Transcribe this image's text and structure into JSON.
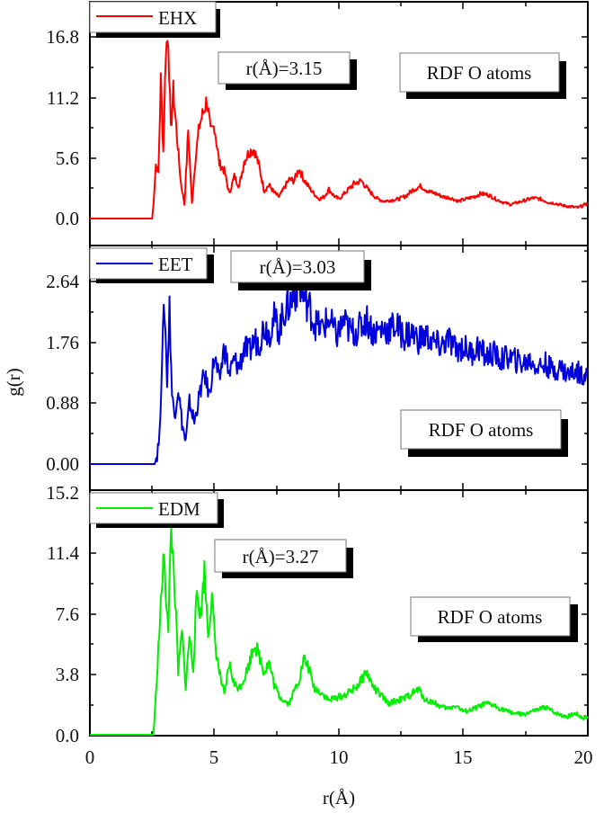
{
  "figure": {
    "xlabel": "r(Å)",
    "ylabel": "g(r)",
    "x_ticks": [
      "0",
      "5",
      "10",
      "15",
      "20"
    ]
  },
  "panels": [
    {
      "legend": "EHX",
      "color": "#ff0000",
      "peak_label": "r(Å)=3.15",
      "annotation": "RDF O atoms",
      "y_ticks": [
        "0.0",
        "5.6",
        "11.2",
        "16.8"
      ]
    },
    {
      "legend": "EET",
      "color": "#0000dd",
      "peak_label": "r(Å)=3.03",
      "annotation": "RDF O atoms",
      "y_ticks": [
        "0.00",
        "0.88",
        "1.76",
        "2.64"
      ]
    },
    {
      "legend": "EDM",
      "color": "#00ee00",
      "peak_label": "r(Å)=3.27",
      "annotation": "RDF O atoms",
      "y_ticks": [
        "0.0",
        "3.8",
        "7.6",
        "11.4",
        "15.2"
      ]
    }
  ],
  "chart_data": [
    {
      "type": "line",
      "title": "",
      "xlabel": "r(Å)",
      "ylabel": "g(r)",
      "xlim": [
        0,
        20
      ],
      "ylim": [
        -2.5,
        19.9
      ],
      "y_ticks": [
        0.0,
        5.6,
        11.2,
        16.8
      ],
      "grid": false,
      "legend_position": "upper left",
      "annotations": [
        "r(Å)=3.15",
        "RDF O atoms"
      ],
      "series": [
        {
          "name": "EHX",
          "color": "#ff0000",
          "x": [
            0,
            2.5,
            2.55,
            2.65,
            2.75,
            2.85,
            2.95,
            3.05,
            3.15,
            3.25,
            3.35,
            3.5,
            3.65,
            3.8,
            3.95,
            4.1,
            4.25,
            4.4,
            4.55,
            4.7,
            4.85,
            5.0,
            5.2,
            5.4,
            5.6,
            5.8,
            6.0,
            6.2,
            6.4,
            6.6,
            6.8,
            7.0,
            7.2,
            7.4,
            7.6,
            7.8,
            8.0,
            8.2,
            8.4,
            8.6,
            8.8,
            9.0,
            9.2,
            9.4,
            9.6,
            9.8,
            10.0,
            10.3,
            10.6,
            10.9,
            11.2,
            11.5,
            11.8,
            12.1,
            12.4,
            12.7,
            13.0,
            13.3,
            13.6,
            13.9,
            14.2,
            14.5,
            14.8,
            15.1,
            15.4,
            15.7,
            16.0,
            16.3,
            16.6,
            16.9,
            17.2,
            17.5,
            17.8,
            18.1,
            18.4,
            18.7,
            19.0,
            19.3,
            19.6,
            20.0
          ],
          "y": [
            0,
            0,
            1.2,
            5.0,
            4.2,
            12.8,
            6.2,
            15.8,
            16.8,
            8.0,
            11.8,
            7.6,
            3.4,
            1.3,
            8.2,
            1.4,
            5.8,
            8.6,
            9.8,
            11.0,
            7.9,
            8.6,
            5.1,
            4.4,
            2.3,
            3.9,
            3.0,
            5.3,
            6.2,
            6.4,
            4.8,
            2.6,
            3.1,
            2.4,
            2.0,
            2.8,
            3.6,
            3.5,
            4.6,
            3.6,
            2.9,
            2.3,
            1.8,
            2.0,
            2.7,
            2.1,
            1.8,
            2.5,
            3.2,
            3.5,
            2.6,
            1.9,
            1.6,
            1.7,
            1.8,
            2.1,
            2.7,
            3.0,
            2.5,
            2.3,
            2.0,
            1.9,
            1.6,
            1.8,
            2.0,
            2.3,
            2.2,
            1.8,
            1.5,
            1.3,
            1.5,
            1.7,
            1.9,
            1.8,
            1.5,
            1.4,
            1.2,
            1.1,
            1.0,
            1.4
          ]
        }
      ]
    },
    {
      "type": "line",
      "title": "",
      "xlabel": "r(Å)",
      "ylabel": "g(r)",
      "xlim": [
        0,
        20
      ],
      "ylim": [
        -0.37,
        3.17
      ],
      "y_ticks": [
        0.0,
        0.88,
        1.76,
        2.64
      ],
      "grid": false,
      "legend_position": "upper left",
      "annotations": [
        "r(Å)=3.03",
        "RDF O atoms"
      ],
      "series": [
        {
          "name": "EET",
          "color": "#0000dd",
          "x": [
            0,
            2.6,
            2.7,
            2.8,
            2.9,
            3.0,
            3.1,
            3.2,
            3.3,
            3.4,
            3.55,
            3.7,
            3.85,
            4.0,
            4.2,
            4.4,
            4.6,
            4.8,
            5.0,
            5.2,
            5.4,
            5.6,
            5.8,
            6.0,
            6.2,
            6.4,
            6.6,
            6.8,
            7.0,
            7.2,
            7.4,
            7.6,
            7.8,
            8.0,
            8.2,
            8.4,
            8.6,
            8.8,
            9.0,
            9.3,
            9.6,
            9.9,
            10.2,
            10.5,
            10.8,
            11.1,
            11.4,
            11.7,
            12.0,
            12.3,
            12.6,
            12.9,
            13.2,
            13.5,
            13.8,
            14.1,
            14.4,
            14.7,
            15.0,
            15.3,
            15.6,
            15.9,
            16.2,
            16.5,
            16.8,
            17.1,
            17.4,
            17.7,
            18.0,
            18.3,
            18.6,
            18.9,
            19.2,
            19.5,
            19.8,
            20.0
          ],
          "y": [
            0,
            0,
            0.15,
            0.4,
            1.6,
            2.3,
            1.2,
            2.25,
            1.0,
            0.7,
            1.1,
            0.6,
            0.3,
            0.9,
            0.6,
            1.0,
            1.3,
            1.0,
            1.55,
            1.2,
            1.7,
            1.3,
            1.5,
            1.4,
            1.7,
            1.6,
            1.8,
            1.75,
            2.0,
            1.9,
            2.1,
            1.95,
            2.2,
            2.3,
            2.45,
            2.6,
            2.4,
            2.3,
            2.05,
            1.95,
            2.1,
            1.85,
            2.05,
            1.9,
            1.95,
            2.1,
            1.9,
            1.95,
            1.95,
            2.0,
            1.85,
            1.9,
            1.8,
            1.85,
            1.75,
            1.7,
            1.8,
            1.65,
            1.7,
            1.6,
            1.7,
            1.55,
            1.6,
            1.5,
            1.55,
            1.5,
            1.45,
            1.5,
            1.4,
            1.45,
            1.35,
            1.4,
            1.3,
            1.35,
            1.3,
            1.32
          ]
        }
      ]
    },
    {
      "type": "line",
      "title": "",
      "xlabel": "r(Å)",
      "ylabel": "g(r)",
      "xlim": [
        0,
        20
      ],
      "ylim": [
        0,
        15.2
      ],
      "x_ticks": [
        0,
        5,
        10,
        15,
        20
      ],
      "y_ticks": [
        0.0,
        3.8,
        7.6,
        11.4,
        15.2
      ],
      "grid": false,
      "legend_position": "upper left",
      "annotations": [
        "r(Å)=3.27",
        "RDF O atoms"
      ],
      "series": [
        {
          "name": "EDM",
          "color": "#00ee00",
          "x": [
            0,
            2.55,
            2.65,
            2.75,
            2.85,
            2.95,
            3.05,
            3.15,
            3.27,
            3.4,
            3.55,
            3.7,
            3.85,
            4.0,
            4.15,
            4.3,
            4.45,
            4.6,
            4.75,
            4.9,
            5.05,
            5.2,
            5.4,
            5.6,
            5.8,
            6.0,
            6.2,
            6.4,
            6.6,
            6.8,
            7.0,
            7.2,
            7.4,
            7.6,
            7.8,
            8.0,
            8.2,
            8.4,
            8.6,
            8.8,
            9.0,
            9.3,
            9.6,
            9.9,
            10.2,
            10.5,
            10.8,
            11.1,
            11.4,
            11.7,
            12.0,
            12.3,
            12.6,
            12.9,
            13.2,
            13.5,
            13.8,
            14.1,
            14.4,
            14.7,
            15.0,
            15.3,
            15.6,
            15.9,
            16.2,
            16.5,
            16.8,
            17.1,
            17.4,
            17.7,
            18.0,
            18.3,
            18.6,
            18.9,
            19.2,
            19.5,
            19.8,
            20.0
          ],
          "y": [
            0,
            0,
            2.5,
            5.5,
            8.0,
            11.2,
            9.0,
            7.0,
            12.9,
            9.5,
            4.0,
            6.5,
            3.0,
            6.3,
            4.2,
            9.0,
            7.5,
            10.3,
            6.5,
            8.6,
            5.5,
            4.0,
            2.5,
            4.5,
            3.2,
            3.0,
            3.6,
            4.5,
            5.8,
            5.0,
            4.0,
            4.6,
            3.2,
            2.5,
            2.2,
            2.0,
            2.8,
            3.5,
            4.8,
            4.2,
            3.0,
            2.7,
            2.2,
            2.4,
            2.5,
            2.8,
            3.2,
            4.0,
            3.0,
            2.5,
            2.0,
            2.2,
            2.3,
            2.6,
            2.9,
            2.2,
            2.1,
            1.8,
            1.7,
            1.9,
            1.5,
            1.6,
            1.8,
            2.0,
            1.9,
            1.7,
            1.5,
            1.4,
            1.3,
            1.5,
            1.6,
            1.8,
            1.5,
            1.3,
            1.2,
            1.4,
            1.1,
            1.2
          ]
        }
      ]
    }
  ]
}
